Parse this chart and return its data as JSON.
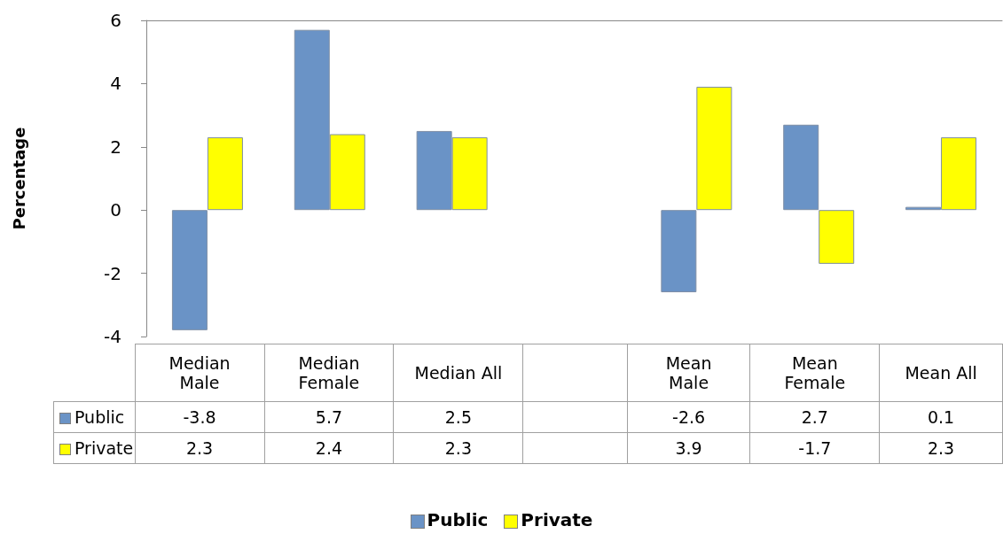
{
  "chart_data": {
    "type": "bar",
    "ylabel": "Percentage",
    "categories": [
      "Median Male",
      "Median Female",
      "Median All",
      null,
      "Mean Male",
      "Mean Female",
      "Mean All"
    ],
    "series": [
      {
        "name": "Public",
        "color": "#6a93c6",
        "values": [
          -3.8,
          5.7,
          2.5,
          null,
          -2.6,
          2.7,
          0.1
        ]
      },
      {
        "name": "Private",
        "color": "#ffff00",
        "values": [
          2.3,
          2.4,
          2.3,
          null,
          3.9,
          -1.7,
          2.3
        ]
      }
    ],
    "ylim": [
      -4,
      6
    ],
    "yticks": [
      -4,
      -2,
      0,
      2,
      4,
      6
    ],
    "grid": false,
    "legend": "bottom",
    "data_labels": true
  }
}
